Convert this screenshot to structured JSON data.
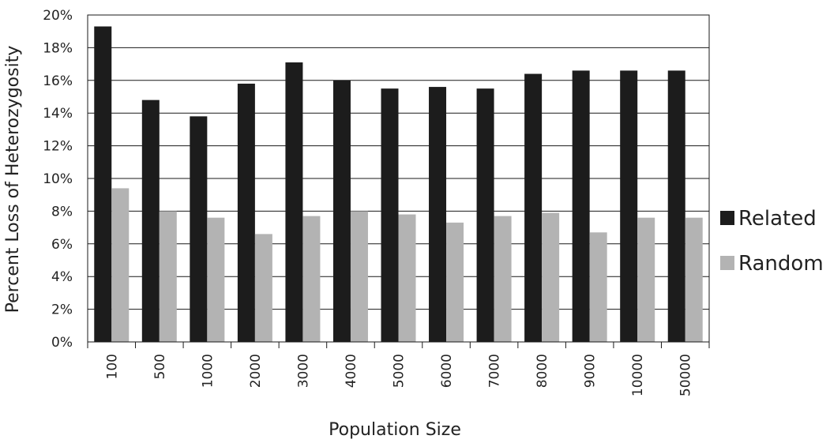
{
  "chart_data": {
    "type": "bar",
    "title": "",
    "xlabel": "Population Size",
    "ylabel": "Percent Loss of Heterozygosity",
    "categories": [
      "100",
      "500",
      "1000",
      "2000",
      "3000",
      "4000",
      "5000",
      "6000",
      "7000",
      "8000",
      "9000",
      "10000",
      "50000"
    ],
    "series": [
      {
        "name": "Related",
        "color": "#1c1c1c",
        "values": [
          19.3,
          14.8,
          13.8,
          15.8,
          17.1,
          16.0,
          15.5,
          15.6,
          15.5,
          16.4,
          16.6,
          16.6,
          16.6
        ]
      },
      {
        "name": "Random",
        "color": "#b3b3b3",
        "values": [
          9.4,
          8.0,
          7.6,
          6.6,
          7.7,
          8.0,
          7.8,
          7.3,
          7.7,
          7.9,
          6.7,
          7.6,
          7.6
        ]
      }
    ],
    "ylim": [
      0,
      20
    ],
    "yticks": [
      "0%",
      "2%",
      "4%",
      "6%",
      "8%",
      "10%",
      "12%",
      "14%",
      "16%",
      "18%",
      "20%"
    ],
    "grid": true,
    "legend_position": "right"
  }
}
